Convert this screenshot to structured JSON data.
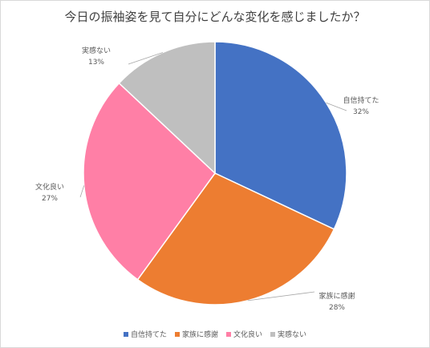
{
  "chart_data": {
    "type": "pie",
    "title": "今日の振袖姿を見て自分にどんな変化を感じましたか？",
    "categories": [
      "自信持てた",
      "家族に感謝",
      "文化良い",
      "実感ない"
    ],
    "values": [
      32,
      28,
      27,
      13
    ],
    "value_labels": [
      "32%",
      "28%",
      "27%",
      "13%"
    ],
    "colors": [
      "#4472c4",
      "#ed7d31",
      "#ff7fa6",
      "#bfbfbf"
    ],
    "legend_position": "bottom"
  }
}
